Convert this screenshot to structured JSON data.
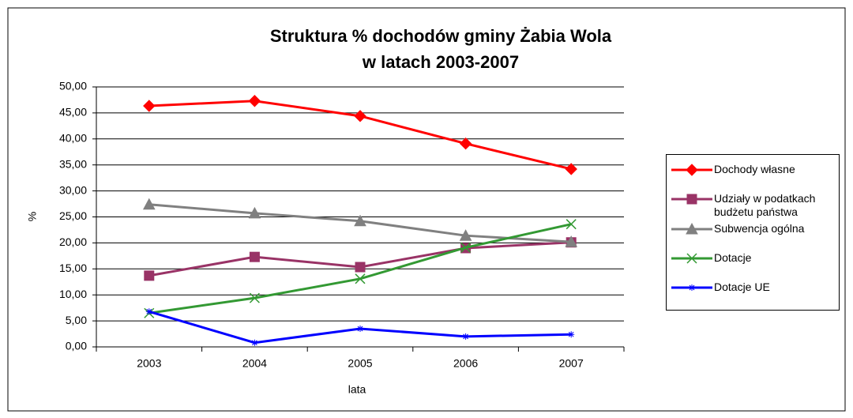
{
  "chart_data": {
    "type": "line",
    "title": [
      "Struktura % dochodów gminy Żabia Wola",
      "w latach 2003-2007"
    ],
    "x_label": "lata",
    "y_label": "%",
    "categories": [
      "2003",
      "2004",
      "2005",
      "2006",
      "2007"
    ],
    "ylim": [
      0,
      50
    ],
    "yticks": [
      {
        "value": 0,
        "label": "0,00"
      },
      {
        "value": 5,
        "label": "5,00"
      },
      {
        "value": 10,
        "label": "10,00"
      },
      {
        "value": 15,
        "label": "15,00"
      },
      {
        "value": 20,
        "label": "20,00"
      },
      {
        "value": 25,
        "label": "25,00"
      },
      {
        "value": 30,
        "label": "30,00"
      },
      {
        "value": 35,
        "label": "35,00"
      },
      {
        "value": 40,
        "label": "40,00"
      },
      {
        "value": 45,
        "label": "45,00"
      },
      {
        "value": 50,
        "label": "50,00"
      }
    ],
    "grid": true,
    "legend": "right",
    "series": [
      {
        "name": "Dochody własne",
        "color": "#ff0000",
        "marker": "diamond",
        "values": [
          46.35,
          47.3,
          44.4,
          39.1,
          34.2
        ]
      },
      {
        "name": "Udziały w podatkach budżetu państwa",
        "color": "#993366",
        "marker": "square",
        "values": [
          13.7,
          17.3,
          15.35,
          19.0,
          20.1
        ]
      },
      {
        "name": "Subwencja ogólna",
        "color": "#808080",
        "marker": "triangle",
        "values": [
          27.4,
          25.7,
          24.2,
          21.4,
          20.2
        ]
      },
      {
        "name": "Dotacje",
        "color": "#339933",
        "marker": "x",
        "values": [
          6.5,
          9.4,
          13.1,
          19.1,
          23.6
        ]
      },
      {
        "name": "Dotacje UE",
        "color": "#0000ff",
        "marker": "star",
        "values": [
          6.8,
          0.8,
          3.5,
          2.0,
          2.4
        ]
      }
    ]
  }
}
